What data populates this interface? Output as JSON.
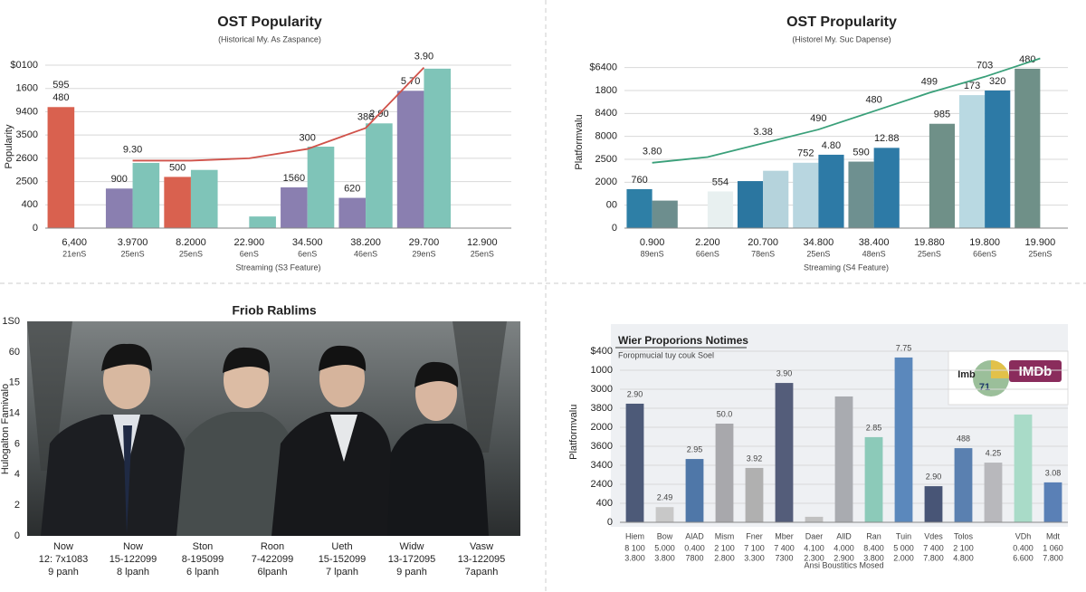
{
  "chart_data": [
    {
      "type": "bar",
      "title": "OST Popularity",
      "subtitle": "(Historical My. As Zaspance)",
      "y_label": "Popularity",
      "x_label": "Streaming (S3 Feature)",
      "categories": [
        "6,400",
        "3.9700",
        "8.2000",
        "22.900",
        "34.500",
        "38.200",
        "29.700",
        "12.900"
      ],
      "sublabels": [
        "21enS",
        "25enS",
        "25enS",
        "6enS",
        "6enS",
        "46enS",
        "29enS",
        "25enS"
      ],
      "ylim": [
        0,
        7
      ],
      "yticks": [
        0,
        {
          "value": 1,
          "label": "400"
        },
        {
          "value": 2,
          "label": "2500"
        },
        {
          "value": 3,
          "label": "2600"
        },
        {
          "value": 4,
          "label": "3500"
        },
        {
          "value": 5,
          "label": "9400"
        },
        {
          "value": 6,
          "label": "1600"
        },
        {
          "value": 7,
          "label": "$0100"
        }
      ],
      "series": [
        {
          "type": "bar",
          "color": "#8a7fb0",
          "colors": [
            "#d9614f",
            "#8a7fb0",
            "#d9614f",
            null,
            "#8a7fb0",
            "#8a7fb0",
            "#8a7fb0",
            null
          ],
          "values": [
            5.2,
            1.7,
            2.2,
            null,
            1.75,
            1.3,
            5.9,
            null
          ],
          "notes": [
            "480",
            "900",
            "500",
            null,
            "1560",
            "620",
            "5.70",
            null
          ],
          "notes2": [
            "595",
            null,
            null,
            null,
            null,
            null,
            null,
            null
          ]
        },
        {
          "type": "bar",
          "color": "#7fc4b8",
          "values": [
            null,
            2.8,
            2.5,
            0.5,
            3.5,
            4.5,
            6.85,
            null
          ],
          "notes": [
            null,
            null,
            null,
            null,
            null,
            "2.90",
            null,
            null
          ]
        },
        {
          "type": "line",
          "color": "#d0524a",
          "values": [
            null,
            2.9,
            2.9,
            3.0,
            3.4,
            4.3,
            6.9,
            null
          ],
          "notes": [
            null,
            "9.30",
            null,
            null,
            "300",
            "380",
            "3.90",
            null
          ]
        }
      ]
    },
    {
      "type": "bar",
      "title": "OST Propularity",
      "subtitle": "(Historel My. Suc Dapense)",
      "y_label": "Platformvalu",
      "x_label": "Streaming (S4 Feature)",
      "categories": [
        "0.900",
        "2.200",
        "20.700",
        "34.800",
        "38.400",
        "19.880",
        "19.800",
        "19.900"
      ],
      "sublabels": [
        "89enS",
        "66enS",
        "78enS",
        "25enS",
        "48enS",
        "25enS",
        "66enS",
        "25enS"
      ],
      "ylim": [
        0,
        7.5
      ],
      "yticks": [
        0,
        {
          "value": 1,
          "label": "00"
        },
        {
          "value": 2,
          "label": "2000"
        },
        {
          "value": 3,
          "label": "2500"
        },
        {
          "value": 4,
          "label": "8000"
        },
        {
          "value": 5,
          "label": "8400"
        },
        {
          "value": 6,
          "label": "1800"
        },
        {
          "value": 7,
          "label": "$6400"
        }
      ],
      "series": [
        {
          "type": "bar",
          "color": "#2e7fa6",
          "colors": [
            "#2e7fa6",
            null,
            "#2b76a0",
            "#b8d6e0",
            "#6e9090",
            null,
            "#b9d9e2",
            "#6f9088"
          ],
          "values": [
            1.7,
            null,
            2.05,
            2.85,
            2.9,
            null,
            5.8,
            6.95
          ],
          "notes": [
            "760",
            null,
            null,
            "752",
            "590",
            null,
            "173",
            "480"
          ]
        },
        {
          "type": "bar",
          "color": "#2d7aa6",
          "colors": [
            "#6d8e8e",
            "#e8f0f0",
            "#b5d3dc",
            "#2d7aa6",
            "#2d7aa6",
            "#6f9088",
            "#2d7aa6",
            null
          ],
          "values": [
            1.2,
            1.6,
            2.5,
            3.2,
            3.5,
            4.55,
            6.0,
            null
          ],
          "notes": [
            null,
            "554",
            null,
            "4.80",
            "12.88",
            "985",
            "320",
            null
          ]
        },
        {
          "type": "line",
          "color": "#3aa07a",
          "values": [
            2.85,
            3.1,
            3.7,
            4.3,
            5.1,
            5.9,
            6.6,
            7.4
          ],
          "notes": [
            "3.80",
            null,
            "3.38",
            "490",
            "480",
            "499",
            "703",
            null
          ]
        }
      ]
    },
    {
      "type": "photo",
      "title": "Friob Rablims",
      "y_label": "Hulogalton Famivalo",
      "axis_labels": [
        "0",
        "2",
        "4",
        "6",
        "14",
        "15",
        "60",
        "1S0"
      ],
      "categories": [
        "Now",
        "Now",
        "Ston",
        "Roon",
        "Ueth",
        "Widw",
        "Vasw"
      ],
      "sublabels": [
        "12: 7x1083",
        "15-122099",
        "8-195099",
        "7-422099",
        "15-152099",
        "13-172095",
        "13-122095"
      ],
      "sublabels2": [
        "9 panh",
        "8 lpanh",
        "6 lpanh",
        "6lpanh",
        "7 lpanh",
        "9 panh",
        "7apanh"
      ]
    },
    {
      "type": "bar",
      "title": "Wier Proporions Notimes",
      "subtitle": "Foropmucial tuy couk Soel",
      "y_label": "Platformvalu",
      "x_label": "Ansi Boustitics Mosed",
      "badge": {
        "brand": "IMDb",
        "text": "lmb",
        "score": "71"
      },
      "categories": [
        "Hiem",
        "Bow",
        "AlAD",
        "Mism",
        "Fner",
        "Mber",
        "Daer",
        "AllD",
        "Ran",
        "Tuin",
        "Vdes",
        "Tolos",
        null,
        "VDh",
        "Mdt"
      ],
      "sublabels": [
        "8 100",
        "5.000",
        "0.400",
        "2 100",
        "7 100",
        "7 400",
        "4.100",
        "4.000",
        "8.400",
        "5 000",
        "7 400",
        "2 100",
        null,
        "0.400",
        "1 060"
      ],
      "sublabels2": [
        "3.800",
        "3.800",
        "7800",
        "2.800",
        "3.300",
        "7300",
        "2.300",
        "2.900",
        "3.800",
        "2.000",
        "7.800",
        "4.800",
        null,
        "6.600",
        "7.800"
      ],
      "ylim": [
        0,
        9.5
      ],
      "yticks": [
        0,
        {
          "value": 1,
          "label": "400"
        },
        {
          "value": 2,
          "label": "2400"
        },
        {
          "value": 3,
          "label": "3400"
        },
        {
          "value": 4,
          "label": "3600"
        },
        {
          "value": 5,
          "label": "2000"
        },
        {
          "value": 6,
          "label": "3800"
        },
        {
          "value": 7,
          "label": "3000"
        },
        {
          "value": 8,
          "label": "1000"
        },
        {
          "value": 9,
          "label": "$400"
        }
      ],
      "series": [
        {
          "type": "bar",
          "color": "#5a80b0",
          "colors": [
            "#4d5a78",
            "#c8c8c8",
            "#4f77a8",
            "#a8a8ac",
            "#b0b0b0",
            "#545d7a",
            "#c0c0c0",
            "#a9abb0",
            "#8ccab9",
            "#5b88bc",
            "#485576",
            "#5a80b0",
            "#b8b8bc",
            "#a9dbc8",
            "#5a80b6"
          ],
          "values": [
            6.24,
            0.8,
            3.33,
            5.19,
            2.86,
            7.33,
            0.29,
            6.62,
            4.48,
            8.67,
            1.9,
            3.9,
            3.14,
            5.67,
            2.1
          ],
          "notes": [
            "2.90",
            "2.49",
            "2.95",
            "50.0",
            "3.92",
            "3.90",
            null,
            null,
            "2.85",
            "7.75",
            "2.90",
            "488",
            "4.25",
            null,
            "3.08"
          ]
        }
      ]
    }
  ]
}
